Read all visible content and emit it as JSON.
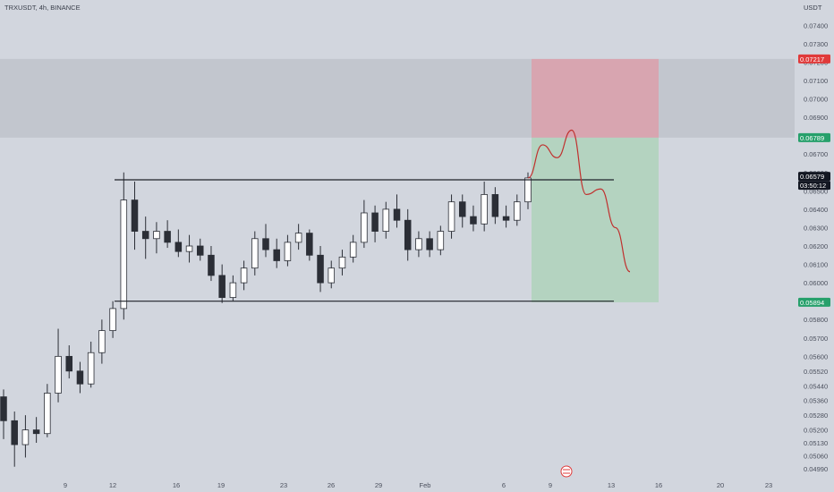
{
  "header": {
    "symbol_line": "TRXUSDT, 4h, BINANCE",
    "currency": "USDT"
  },
  "chart_data": {
    "type": "candlestick",
    "symbol": "TRXUSDT",
    "interval": "4h",
    "exchange": "BINANCE",
    "currency": "USDT",
    "ylim": [
      0.0495,
      0.0745
    ],
    "y_ticks": [
      "0.07400",
      "0.07300",
      "0.07200",
      "0.07100",
      "0.07000",
      "0.06900",
      "0.06700",
      "0.06600",
      "0.06500",
      "0.06400",
      "0.06300",
      "0.06200",
      "0.06100",
      "0.06000",
      "0.05800",
      "0.05700",
      "0.05600",
      "0.05520",
      "0.05440",
      "0.05360",
      "0.05280",
      "0.05200",
      "0.05130",
      "0.05060",
      "0.04990"
    ],
    "x_ticks": [
      "9",
      "12",
      "16",
      "19",
      "23",
      "26",
      "29",
      "Feb",
      "6",
      "9",
      "13",
      "16",
      "20",
      "23"
    ],
    "candles": [
      [
        "9",
        0.0538,
        0.0542,
        0.0515,
        0.0525
      ],
      [
        "9",
        0.0525,
        0.053,
        0.05,
        0.0512
      ],
      [
        "9",
        0.0512,
        0.0528,
        0.0505,
        0.052
      ],
      [
        "9",
        0.052,
        0.0527,
        0.0513,
        0.0518
      ],
      [
        "9",
        0.0518,
        0.0545,
        0.0516,
        0.054
      ],
      [
        "9",
        0.054,
        0.0575,
        0.0535,
        0.056
      ],
      [
        "9",
        0.056,
        0.0566,
        0.0548,
        0.0552
      ],
      [
        "9",
        0.0552,
        0.0557,
        0.054,
        0.0545
      ],
      [
        "12",
        0.0545,
        0.0568,
        0.0543,
        0.0562
      ],
      [
        "12",
        0.0562,
        0.058,
        0.0556,
        0.0574
      ],
      [
        "12",
        0.0574,
        0.059,
        0.057,
        0.0586
      ],
      [
        "12",
        0.0586,
        0.066,
        0.058,
        0.0645
      ],
      [
        "12",
        0.0645,
        0.0655,
        0.0618,
        0.0628
      ],
      [
        "12",
        0.0628,
        0.0636,
        0.0613,
        0.0624
      ],
      [
        "12",
        0.0624,
        0.0633,
        0.0616,
        0.0628
      ],
      [
        "16",
        0.0628,
        0.0634,
        0.0619,
        0.0622
      ],
      [
        "16",
        0.0622,
        0.0629,
        0.0614,
        0.0617
      ],
      [
        "16",
        0.0617,
        0.0626,
        0.0611,
        0.062
      ],
      [
        "16",
        0.062,
        0.0624,
        0.0612,
        0.0615
      ],
      [
        "16",
        0.0615,
        0.062,
        0.0601,
        0.0604
      ],
      [
        "19",
        0.0604,
        0.061,
        0.0589,
        0.0592
      ],
      [
        "19",
        0.0592,
        0.0604,
        0.059,
        0.06
      ],
      [
        "19",
        0.06,
        0.0612,
        0.0596,
        0.0608
      ],
      [
        "19",
        0.0608,
        0.0628,
        0.0604,
        0.0624
      ],
      [
        "19",
        0.0624,
        0.0632,
        0.0614,
        0.0618
      ],
      [
        "23",
        0.0618,
        0.0624,
        0.0608,
        0.0612
      ],
      [
        "23",
        0.0612,
        0.0626,
        0.0609,
        0.0622
      ],
      [
        "23",
        0.0622,
        0.0632,
        0.0618,
        0.0627
      ],
      [
        "23",
        0.0627,
        0.0629,
        0.0612,
        0.0615
      ],
      [
        "26",
        0.0615,
        0.062,
        0.0595,
        0.06
      ],
      [
        "26",
        0.06,
        0.0612,
        0.0597,
        0.0608
      ],
      [
        "26",
        0.0608,
        0.0618,
        0.0604,
        0.0614
      ],
      [
        "26",
        0.0614,
        0.0626,
        0.0611,
        0.0622
      ],
      [
        "29",
        0.0622,
        0.0645,
        0.0619,
        0.0638
      ],
      [
        "29",
        0.0638,
        0.0642,
        0.0622,
        0.0628
      ],
      [
        "29",
        0.0628,
        0.0644,
        0.0624,
        0.064
      ],
      [
        "29",
        0.064,
        0.0648,
        0.063,
        0.0634
      ],
      [
        "29",
        0.0634,
        0.064,
        0.0612,
        0.0618
      ],
      [
        "Feb",
        0.0618,
        0.0628,
        0.0614,
        0.0624
      ],
      [
        "Feb",
        0.0624,
        0.0628,
        0.0614,
        0.0618
      ],
      [
        "Feb",
        0.0618,
        0.0631,
        0.0615,
        0.0628
      ],
      [
        "Feb",
        0.0628,
        0.0648,
        0.0624,
        0.0644
      ],
      [
        "Feb",
        0.0644,
        0.0648,
        0.063,
        0.0636
      ],
      [
        "Feb",
        0.0636,
        0.0642,
        0.0628,
        0.0632
      ],
      [
        "6",
        0.0632,
        0.0655,
        0.0628,
        0.0648
      ],
      [
        "6",
        0.0648,
        0.0652,
        0.0632,
        0.0636
      ],
      [
        "6",
        0.0636,
        0.0642,
        0.063,
        0.0634
      ],
      [
        "6",
        0.0634,
        0.0648,
        0.0631,
        0.0644
      ],
      [
        "6",
        0.0644,
        0.066,
        0.064,
        0.0657
      ]
    ],
    "range_lines": [
      0.0656,
      0.059
    ],
    "projection": [
      0.0657,
      0.0675,
      0.0668,
      0.0683,
      0.0648,
      0.0651,
      0.063,
      0.0606
    ],
    "price_tags": [
      {
        "label": "0.07217",
        "value": 0.07217,
        "color": "#e03a3a"
      },
      {
        "label": "0.06789",
        "value": 0.06789,
        "color": "#26a06b"
      },
      {
        "label": "0.06579",
        "value": 0.06579,
        "color": "#131722"
      },
      {
        "label": "03:50:12",
        "value": 0.06579,
        "color": "#131722"
      },
      {
        "label": "0.05894",
        "value": 0.05894,
        "color": "#26a06b"
      }
    ],
    "zones": {
      "resistance": [
        0.06789,
        0.07217
      ],
      "stop": [
        0.06789,
        0.07217
      ],
      "target": [
        0.05894,
        0.06789
      ]
    },
    "colors": {
      "background": "#d2d6de",
      "candle": "#2b2e36",
      "resistance_band": "#c2c6ce",
      "stop_zone": "#d8a5b0",
      "target_zone": "#b4d3c0",
      "projection": "#c0302e",
      "up_tag": "#26a06b",
      "down_tag": "#e03a3a"
    },
    "grid": false
  }
}
